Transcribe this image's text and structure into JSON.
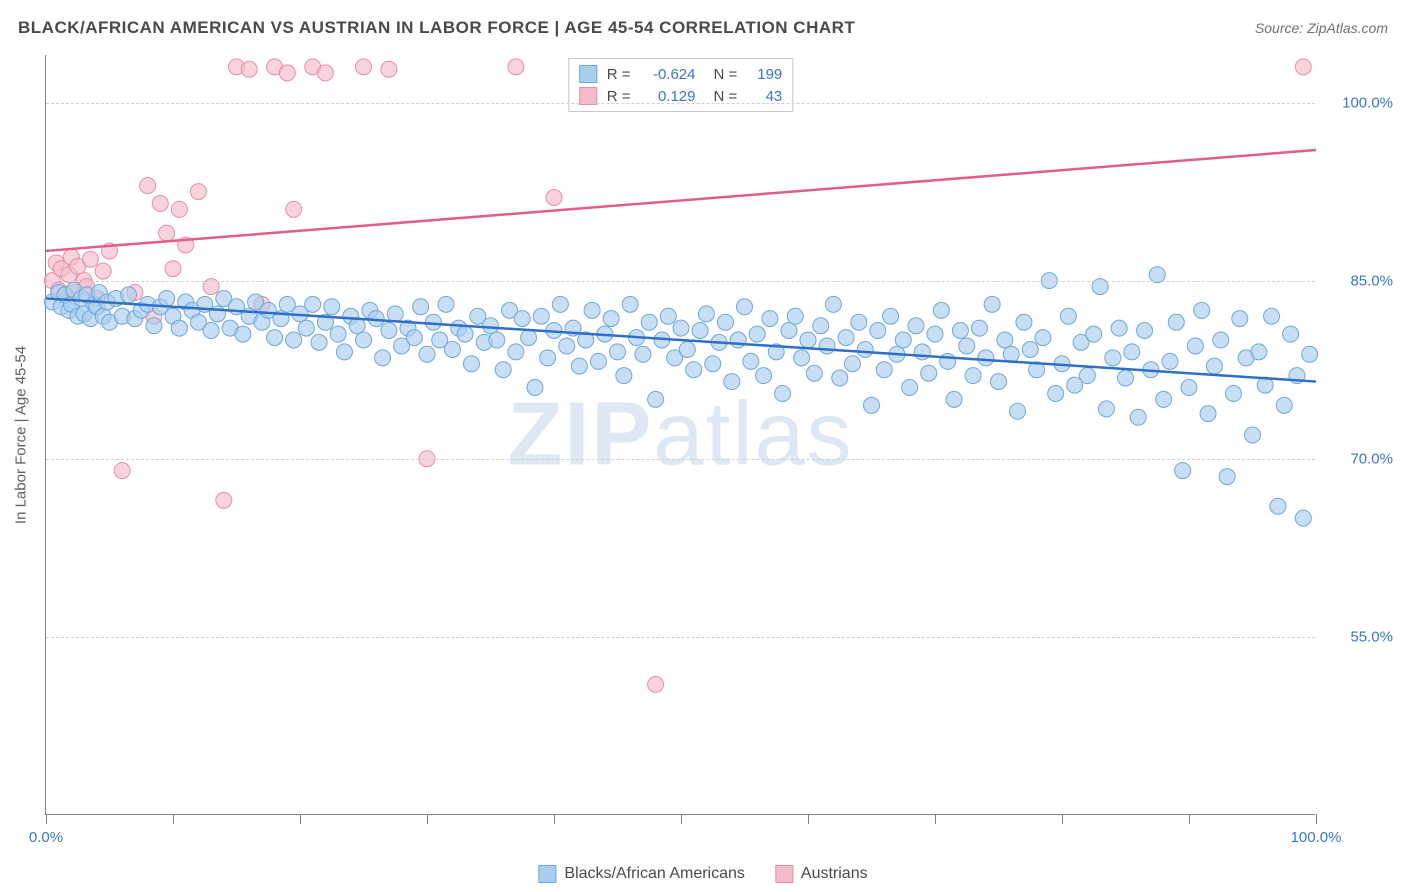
{
  "title": "BLACK/AFRICAN AMERICAN VS AUSTRIAN IN LABOR FORCE | AGE 45-54 CORRELATION CHART",
  "source": "Source: ZipAtlas.com",
  "y_axis_label": "In Labor Force | Age 45-54",
  "watermark": {
    "bold": "ZIP",
    "rest": "atlas"
  },
  "chart": {
    "type": "scatter",
    "xlim": [
      0,
      100
    ],
    "ylim": [
      40,
      104
    ],
    "yticks": [
      {
        "v": 55.0,
        "label": "55.0%"
      },
      {
        "v": 70.0,
        "label": "70.0%"
      },
      {
        "v": 85.0,
        "label": "85.0%"
      },
      {
        "v": 100.0,
        "label": "100.0%"
      }
    ],
    "xticks_at": [
      0,
      10,
      20,
      30,
      40,
      50,
      60,
      70,
      80,
      90,
      100
    ],
    "xtick_labels": [
      {
        "v": 0,
        "label": "0.0%"
      },
      {
        "v": 100,
        "label": "100.0%"
      }
    ],
    "background_color": "#ffffff",
    "grid_color": "#d0d0d0",
    "series": {
      "blue": {
        "name": "Blacks/African Americans",
        "fill": "#a9cdee",
        "stroke": "#6fa8dc",
        "fill_opacity": 0.65,
        "marker_r": 8,
        "trend": {
          "x1": 0,
          "y1": 83.5,
          "x2": 100,
          "y2": 76.5,
          "color": "#2e6fc7",
          "width": 2.5
        },
        "stats": {
          "R": "-0.624",
          "N": "199"
        },
        "points": [
          [
            0.5,
            83.2
          ],
          [
            1.0,
            84.0
          ],
          [
            1.2,
            82.8
          ],
          [
            1.5,
            83.8
          ],
          [
            1.8,
            82.5
          ],
          [
            2.0,
            83.0
          ],
          [
            2.2,
            84.2
          ],
          [
            2.5,
            82.0
          ],
          [
            2.8,
            83.5
          ],
          [
            3.0,
            82.2
          ],
          [
            3.2,
            83.8
          ],
          [
            3.5,
            81.8
          ],
          [
            3.8,
            83.0
          ],
          [
            4.0,
            82.8
          ],
          [
            4.2,
            84.0
          ],
          [
            4.5,
            82.0
          ],
          [
            4.8,
            83.2
          ],
          [
            5.0,
            81.5
          ],
          [
            5.5,
            83.5
          ],
          [
            6.0,
            82.0
          ],
          [
            6.5,
            83.8
          ],
          [
            7.0,
            81.8
          ],
          [
            7.5,
            82.5
          ],
          [
            8.0,
            83.0
          ],
          [
            8.5,
            81.2
          ],
          [
            9.0,
            82.8
          ],
          [
            9.5,
            83.5
          ],
          [
            10.0,
            82.0
          ],
          [
            10.5,
            81.0
          ],
          [
            11.0,
            83.2
          ],
          [
            11.5,
            82.5
          ],
          [
            12.0,
            81.5
          ],
          [
            12.5,
            83.0
          ],
          [
            13.0,
            80.8
          ],
          [
            13.5,
            82.2
          ],
          [
            14.0,
            83.5
          ],
          [
            14.5,
            81.0
          ],
          [
            15.0,
            82.8
          ],
          [
            15.5,
            80.5
          ],
          [
            16.0,
            82.0
          ],
          [
            16.5,
            83.2
          ],
          [
            17.0,
            81.5
          ],
          [
            17.5,
            82.5
          ],
          [
            18.0,
            80.2
          ],
          [
            18.5,
            81.8
          ],
          [
            19.0,
            83.0
          ],
          [
            19.5,
            80.0
          ],
          [
            20.0,
            82.2
          ],
          [
            20.5,
            81.0
          ],
          [
            21.0,
            83.0
          ],
          [
            21.5,
            79.8
          ],
          [
            22.0,
            81.5
          ],
          [
            22.5,
            82.8
          ],
          [
            23.0,
            80.5
          ],
          [
            23.5,
            79.0
          ],
          [
            24.0,
            82.0
          ],
          [
            24.5,
            81.2
          ],
          [
            25.0,
            80.0
          ],
          [
            25.5,
            82.5
          ],
          [
            26.0,
            81.8
          ],
          [
            26.5,
            78.5
          ],
          [
            27.0,
            80.8
          ],
          [
            27.5,
            82.2
          ],
          [
            28.0,
            79.5
          ],
          [
            28.5,
            81.0
          ],
          [
            29.0,
            80.2
          ],
          [
            29.5,
            82.8
          ],
          [
            30.0,
            78.8
          ],
          [
            30.5,
            81.5
          ],
          [
            31.0,
            80.0
          ],
          [
            31.5,
            83.0
          ],
          [
            32.0,
            79.2
          ],
          [
            32.5,
            81.0
          ],
          [
            33.0,
            80.5
          ],
          [
            33.5,
            78.0
          ],
          [
            34.0,
            82.0
          ],
          [
            34.5,
            79.8
          ],
          [
            35.0,
            81.2
          ],
          [
            35.5,
            80.0
          ],
          [
            36.0,
            77.5
          ],
          [
            36.5,
            82.5
          ],
          [
            37.0,
            79.0
          ],
          [
            37.5,
            81.8
          ],
          [
            38.0,
            80.2
          ],
          [
            38.5,
            76.0
          ],
          [
            39.0,
            82.0
          ],
          [
            39.5,
            78.5
          ],
          [
            40.0,
            80.8
          ],
          [
            40.5,
            83.0
          ],
          [
            41.0,
            79.5
          ],
          [
            41.5,
            81.0
          ],
          [
            42.0,
            77.8
          ],
          [
            42.5,
            80.0
          ],
          [
            43.0,
            82.5
          ],
          [
            43.5,
            78.2
          ],
          [
            44.0,
            80.5
          ],
          [
            44.5,
            81.8
          ],
          [
            45.0,
            79.0
          ],
          [
            45.5,
            77.0
          ],
          [
            46.0,
            83.0
          ],
          [
            46.5,
            80.2
          ],
          [
            47.0,
            78.8
          ],
          [
            47.5,
            81.5
          ],
          [
            48.0,
            75.0
          ],
          [
            48.5,
            80.0
          ],
          [
            49.0,
            82.0
          ],
          [
            49.5,
            78.5
          ],
          [
            50.0,
            81.0
          ],
          [
            50.5,
            79.2
          ],
          [
            51.0,
            77.5
          ],
          [
            51.5,
            80.8
          ],
          [
            52.0,
            82.2
          ],
          [
            52.5,
            78.0
          ],
          [
            53.0,
            79.8
          ],
          [
            53.5,
            81.5
          ],
          [
            54.0,
            76.5
          ],
          [
            54.5,
            80.0
          ],
          [
            55.0,
            82.8
          ],
          [
            55.5,
            78.2
          ],
          [
            56.0,
            80.5
          ],
          [
            56.5,
            77.0
          ],
          [
            57.0,
            81.8
          ],
          [
            57.5,
            79.0
          ],
          [
            58.0,
            75.5
          ],
          [
            58.5,
            80.8
          ],
          [
            59.0,
            82.0
          ],
          [
            59.5,
            78.5
          ],
          [
            60.0,
            80.0
          ],
          [
            60.5,
            77.2
          ],
          [
            61.0,
            81.2
          ],
          [
            61.5,
            79.5
          ],
          [
            62.0,
            83.0
          ],
          [
            62.5,
            76.8
          ],
          [
            63.0,
            80.2
          ],
          [
            63.5,
            78.0
          ],
          [
            64.0,
            81.5
          ],
          [
            64.5,
            79.2
          ],
          [
            65.0,
            74.5
          ],
          [
            65.5,
            80.8
          ],
          [
            66.0,
            77.5
          ],
          [
            66.5,
            82.0
          ],
          [
            67.0,
            78.8
          ],
          [
            67.5,
            80.0
          ],
          [
            68.0,
            76.0
          ],
          [
            68.5,
            81.2
          ],
          [
            69.0,
            79.0
          ],
          [
            69.5,
            77.2
          ],
          [
            70.0,
            80.5
          ],
          [
            70.5,
            82.5
          ],
          [
            71.0,
            78.2
          ],
          [
            71.5,
            75.0
          ],
          [
            72.0,
            80.8
          ],
          [
            72.5,
            79.5
          ],
          [
            73.0,
            77.0
          ],
          [
            73.5,
            81.0
          ],
          [
            74.0,
            78.5
          ],
          [
            74.5,
            83.0
          ],
          [
            75.0,
            76.5
          ],
          [
            75.5,
            80.0
          ],
          [
            76.0,
            78.8
          ],
          [
            76.5,
            74.0
          ],
          [
            77.0,
            81.5
          ],
          [
            77.5,
            79.2
          ],
          [
            78.0,
            77.5
          ],
          [
            78.5,
            80.2
          ],
          [
            79.0,
            85.0
          ],
          [
            79.5,
            75.5
          ],
          [
            80.0,
            78.0
          ],
          [
            80.5,
            82.0
          ],
          [
            81.0,
            76.2
          ],
          [
            81.5,
            79.8
          ],
          [
            82.0,
            77.0
          ],
          [
            82.5,
            80.5
          ],
          [
            83.0,
            84.5
          ],
          [
            83.5,
            74.2
          ],
          [
            84.0,
            78.5
          ],
          [
            84.5,
            81.0
          ],
          [
            85.0,
            76.8
          ],
          [
            85.5,
            79.0
          ],
          [
            86.0,
            73.5
          ],
          [
            86.5,
            80.8
          ],
          [
            87.0,
            77.5
          ],
          [
            87.5,
            85.5
          ],
          [
            88.0,
            75.0
          ],
          [
            88.5,
            78.2
          ],
          [
            89.0,
            81.5
          ],
          [
            89.5,
            69.0
          ],
          [
            90.0,
            76.0
          ],
          [
            90.5,
            79.5
          ],
          [
            91.0,
            82.5
          ],
          [
            91.5,
            73.8
          ],
          [
            92.0,
            77.8
          ],
          [
            92.5,
            80.0
          ],
          [
            93.0,
            68.5
          ],
          [
            93.5,
            75.5
          ],
          [
            94.0,
            81.8
          ],
          [
            94.5,
            78.5
          ],
          [
            95.0,
            72.0
          ],
          [
            95.5,
            79.0
          ],
          [
            96.0,
            76.2
          ],
          [
            96.5,
            82.0
          ],
          [
            97.0,
            66.0
          ],
          [
            97.5,
            74.5
          ],
          [
            98.0,
            80.5
          ],
          [
            98.5,
            77.0
          ],
          [
            99.0,
            65.0
          ],
          [
            99.5,
            78.8
          ]
        ]
      },
      "pink": {
        "name": "Austrians",
        "fill": "#f4bccb",
        "stroke": "#e88fa8",
        "fill_opacity": 0.65,
        "marker_r": 8,
        "trend": {
          "x1": 0,
          "y1": 87.5,
          "x2": 100,
          "y2": 96.0,
          "color": "#e45d86",
          "width": 2.5
        },
        "stats": {
          "R": "0.129",
          "N": "43"
        },
        "points": [
          [
            0.5,
            85.0
          ],
          [
            0.8,
            86.5
          ],
          [
            1.0,
            84.2
          ],
          [
            1.2,
            86.0
          ],
          [
            1.5,
            83.8
          ],
          [
            1.8,
            85.5
          ],
          [
            2.0,
            87.0
          ],
          [
            2.2,
            84.0
          ],
          [
            2.5,
            86.2
          ],
          [
            3.0,
            85.0
          ],
          [
            3.2,
            84.5
          ],
          [
            3.5,
            86.8
          ],
          [
            4.0,
            83.5
          ],
          [
            4.5,
            85.8
          ],
          [
            5.0,
            87.5
          ],
          [
            6.0,
            69.0
          ],
          [
            7.0,
            84.0
          ],
          [
            8.0,
            93.0
          ],
          [
            8.5,
            82.0
          ],
          [
            9.0,
            91.5
          ],
          [
            9.5,
            89.0
          ],
          [
            10.0,
            86.0
          ],
          [
            10.5,
            91.0
          ],
          [
            11.0,
            88.0
          ],
          [
            12.0,
            92.5
          ],
          [
            13.0,
            84.5
          ],
          [
            14.0,
            66.5
          ],
          [
            15.0,
            103.0
          ],
          [
            16.0,
            102.8
          ],
          [
            17.0,
            83.0
          ],
          [
            18.0,
            103.0
          ],
          [
            19.0,
            102.5
          ],
          [
            19.5,
            91.0
          ],
          [
            21.0,
            103.0
          ],
          [
            22.0,
            102.5
          ],
          [
            25.0,
            103.0
          ],
          [
            27.0,
            102.8
          ],
          [
            30.0,
            70.0
          ],
          [
            37.0,
            103.0
          ],
          [
            40.0,
            92.0
          ],
          [
            42.0,
            103.0
          ],
          [
            48.0,
            51.0
          ],
          [
            99.0,
            103.0
          ]
        ]
      }
    }
  },
  "legend": [
    {
      "label": "Blacks/African Americans",
      "fill": "#a9cdee",
      "stroke": "#6fa8dc"
    },
    {
      "label": "Austrians",
      "fill": "#f4bccb",
      "stroke": "#e88fa8"
    }
  ]
}
